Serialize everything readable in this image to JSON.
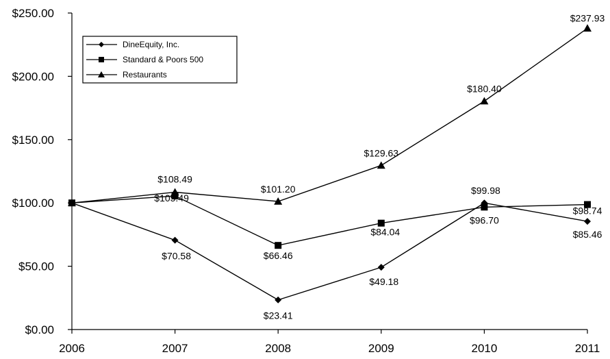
{
  "chart_data": {
    "type": "line",
    "x": [
      "2006",
      "2007",
      "2008",
      "2009",
      "2010",
      "2011"
    ],
    "ylim": [
      0,
      250
    ],
    "yticks": [
      0,
      50,
      100,
      150,
      200,
      250
    ],
    "ytick_labels": [
      "$0.00",
      "$50.00",
      "$100.00",
      "$150.00",
      "$200.00",
      "$250.00"
    ],
    "grid": false,
    "legend_position": "top-left",
    "series": [
      {
        "name": "DineEquity, Inc.",
        "marker": "diamond",
        "values": [
          100,
          70.58,
          23.41,
          49.18,
          99.98,
          85.46
        ],
        "labels": [
          "",
          "$70.58",
          "$23.41",
          "$49.18",
          "$99.98",
          "$85.46"
        ]
      },
      {
        "name": "Standard & Poors 500",
        "marker": "square",
        "values": [
          100,
          105.49,
          66.46,
          84.04,
          96.7,
          98.74
        ],
        "labels": [
          "",
          "$105.49",
          "$66.46",
          "$84.04",
          "$96.70",
          "$98.74"
        ]
      },
      {
        "name": "Restaurants",
        "marker": "triangle",
        "values": [
          100,
          108.49,
          101.2,
          129.63,
          180.4,
          237.93
        ],
        "labels": [
          "",
          "$108.49",
          "$101.20",
          "$129.63",
          "$180.40",
          "$237.93"
        ]
      }
    ],
    "colors": {
      "line": "#000000",
      "marker": "#000000",
      "axis": "#000000",
      "background": "#ffffff"
    }
  }
}
